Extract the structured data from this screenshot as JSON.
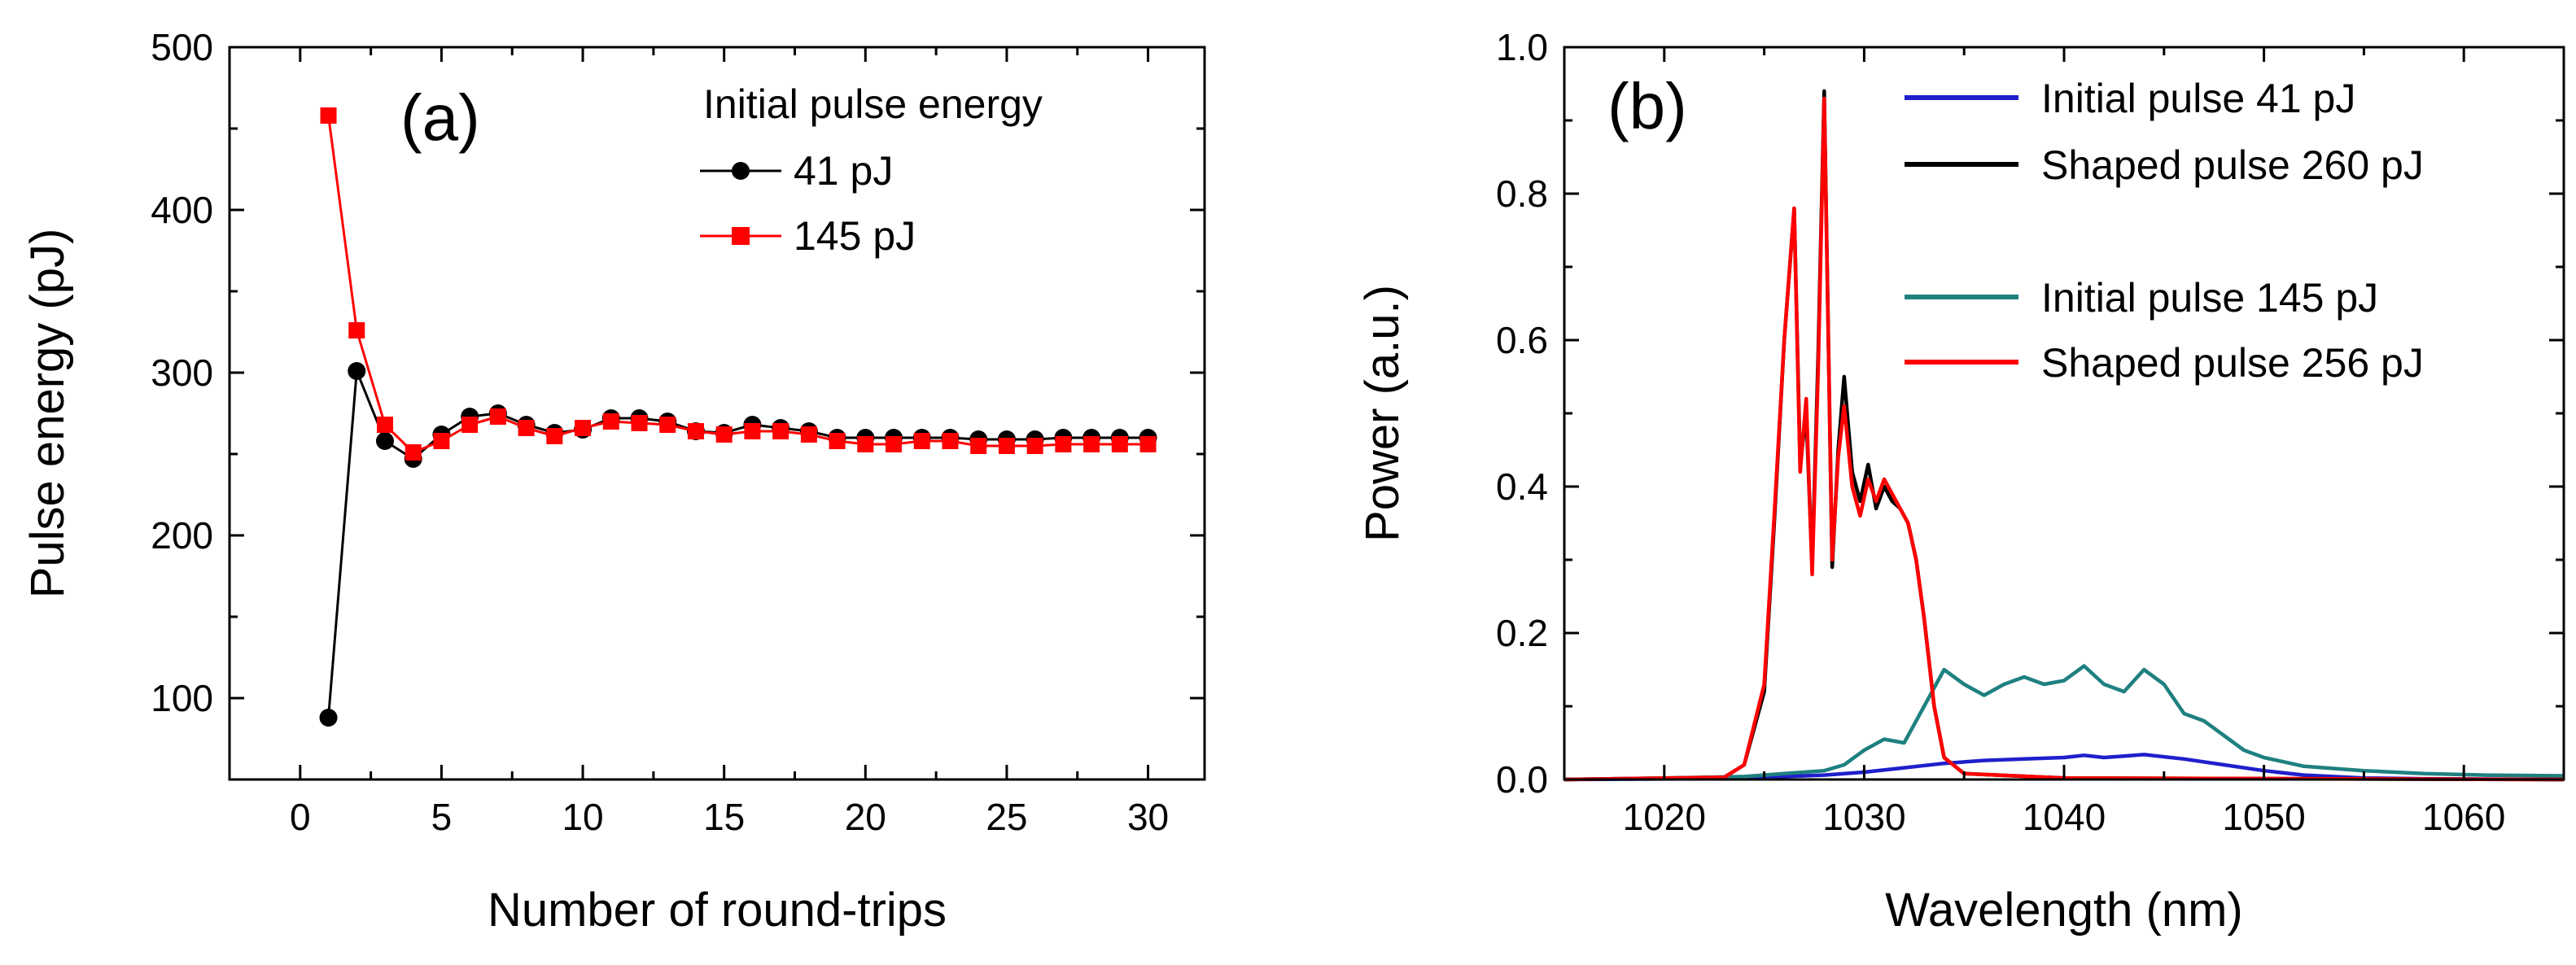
{
  "chart_data": [
    {
      "type": "line",
      "panel_label": "(a)",
      "xlabel": "Number of round-trips",
      "ylabel": "Pulse energy (pJ)",
      "xlim": [
        -2.5,
        32
      ],
      "ylim": [
        50,
        500
      ],
      "xticks": [
        0,
        5,
        10,
        15,
        20,
        25,
        30
      ],
      "xtick_labels": [
        "0",
        "5",
        "10",
        "15",
        "20",
        "25",
        "30"
      ],
      "yticks": [
        100,
        200,
        300,
        400,
        500
      ],
      "ytick_labels": [
        "100",
        "200",
        "300",
        "400",
        "500"
      ],
      "legend_title": "Initial pulse energy",
      "legend_position": "top-right",
      "series": [
        {
          "name": "41 pJ",
          "color": "#000000",
          "marker": "circle",
          "x": [
            1,
            2,
            3,
            4,
            5,
            6,
            7,
            8,
            9,
            10,
            11,
            12,
            13,
            14,
            15,
            16,
            17,
            18,
            19,
            20,
            21,
            22,
            23,
            24,
            25,
            26,
            27,
            28,
            29,
            30
          ],
          "values": [
            88,
            301,
            258,
            247,
            262,
            273,
            275,
            268,
            263,
            265,
            272,
            272,
            270,
            264,
            263,
            268,
            266,
            264,
            260,
            260,
            260,
            260,
            260,
            259,
            259,
            259,
            260,
            260,
            260,
            260
          ]
        },
        {
          "name": "145 pJ",
          "color": "#ff0000",
          "marker": "square",
          "x": [
            1,
            2,
            3,
            4,
            5,
            6,
            7,
            8,
            9,
            10,
            11,
            12,
            13,
            14,
            15,
            16,
            17,
            18,
            19,
            20,
            21,
            22,
            23,
            24,
            25,
            26,
            27,
            28,
            29,
            30
          ],
          "values": [
            458,
            326,
            268,
            251,
            258,
            268,
            273,
            266,
            261,
            266,
            270,
            269,
            268,
            264,
            262,
            264,
            264,
            262,
            258,
            256,
            256,
            258,
            258,
            255,
            255,
            255,
            256,
            256,
            256,
            256
          ]
        }
      ]
    },
    {
      "type": "line",
      "panel_label": "(b)",
      "xlabel": "Wavelength (nm)",
      "ylabel": "Power (a.u.)",
      "xlim": [
        1015,
        1065
      ],
      "ylim": [
        0,
        1.0
      ],
      "xticks": [
        1020,
        1030,
        1040,
        1050,
        1060
      ],
      "xtick_labels": [
        "1020",
        "1030",
        "1040",
        "1050",
        "1060"
      ],
      "yticks": [
        0,
        0.2,
        0.4,
        0.6,
        0.8,
        1.0
      ],
      "ytick_labels": [
        "0.0",
        "0.2",
        "0.4",
        "0.6",
        "0.8",
        "1.0"
      ],
      "legend_position": "top-right",
      "series": [
        {
          "name": "Initial pulse 41 pJ",
          "color": "#1f1fcc",
          "x": [
            1015,
            1022,
            1025,
            1028,
            1030,
            1032,
            1034,
            1036,
            1038,
            1040,
            1041,
            1042,
            1043,
            1044,
            1046,
            1048,
            1050,
            1052,
            1055,
            1058,
            1065
          ],
          "values": [
            0,
            0.001,
            0.003,
            0.006,
            0.01,
            0.016,
            0.022,
            0.026,
            0.028,
            0.03,
            0.033,
            0.03,
            0.032,
            0.034,
            0.028,
            0.02,
            0.012,
            0.006,
            0.002,
            0.001,
            0
          ]
        },
        {
          "name": "Shaped pulse 260 pJ",
          "color": "#000000",
          "x": [
            1015,
            1023,
            1024,
            1025,
            1025.5,
            1026,
            1026.5,
            1026.8,
            1027.1,
            1027.4,
            1027.7,
            1028,
            1028.4,
            1028.7,
            1029,
            1029.4,
            1029.8,
            1030.2,
            1030.6,
            1031,
            1031.4,
            1031.8,
            1032.2,
            1032.6,
            1033,
            1033.5,
            1034,
            1035,
            1040,
            1065
          ],
          "values": [
            0,
            0.003,
            0.02,
            0.12,
            0.35,
            0.6,
            0.78,
            0.43,
            0.5,
            0.29,
            0.58,
            0.94,
            0.29,
            0.45,
            0.55,
            0.42,
            0.38,
            0.43,
            0.37,
            0.4,
            0.38,
            0.37,
            0.35,
            0.3,
            0.22,
            0.1,
            0.03,
            0.008,
            0.002,
            0
          ]
        },
        {
          "name": "Initial pulse 145 pJ",
          "color": "#1f8080",
          "x": [
            1015,
            1020,
            1024,
            1026,
            1028,
            1029,
            1030,
            1031,
            1032,
            1033,
            1034,
            1035,
            1036,
            1037,
            1038,
            1039,
            1040,
            1041,
            1042,
            1043,
            1044,
            1045,
            1046,
            1047,
            1048,
            1049,
            1050,
            1052,
            1055,
            1058,
            1061,
            1065
          ],
          "values": [
            0,
            0.002,
            0.004,
            0.008,
            0.012,
            0.02,
            0.04,
            0.055,
            0.05,
            0.1,
            0.15,
            0.13,
            0.115,
            0.13,
            0.14,
            0.13,
            0.135,
            0.155,
            0.13,
            0.12,
            0.15,
            0.13,
            0.09,
            0.08,
            0.06,
            0.04,
            0.03,
            0.018,
            0.012,
            0.008,
            0.006,
            0.005
          ]
        },
        {
          "name": "Shaped pulse 256 pJ",
          "color": "#ff0000",
          "x": [
            1015,
            1023,
            1024,
            1025,
            1025.5,
            1026,
            1026.5,
            1026.8,
            1027.1,
            1027.4,
            1027.7,
            1028,
            1028.4,
            1028.7,
            1029,
            1029.4,
            1029.8,
            1030.2,
            1030.6,
            1031,
            1031.4,
            1031.8,
            1032.2,
            1032.6,
            1033,
            1033.5,
            1034,
            1035,
            1040,
            1065
          ],
          "values": [
            0,
            0.003,
            0.02,
            0.13,
            0.36,
            0.6,
            0.78,
            0.42,
            0.52,
            0.28,
            0.56,
            0.93,
            0.3,
            0.44,
            0.51,
            0.4,
            0.36,
            0.41,
            0.38,
            0.41,
            0.39,
            0.37,
            0.35,
            0.3,
            0.22,
            0.1,
            0.03,
            0.008,
            0.002,
            0
          ]
        }
      ]
    }
  ]
}
